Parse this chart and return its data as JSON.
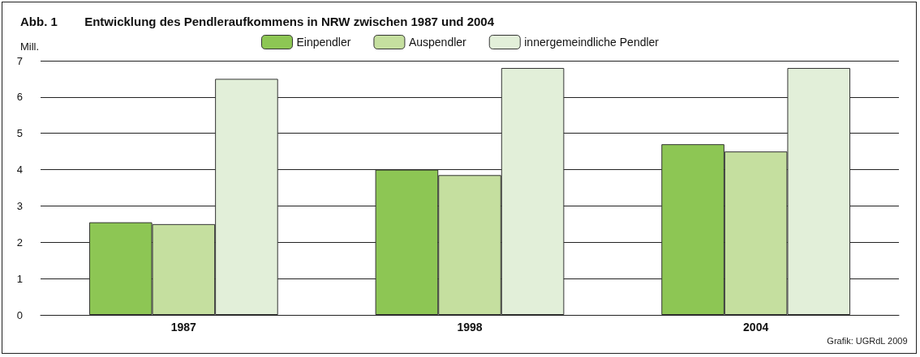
{
  "chart_data": {
    "type": "bar",
    "title": "Abb. 1        Entwicklung des Pendleraufkommens in NRW zwischen 1987 und 2004",
    "ylabel": "Mill.",
    "categories": [
      "1987",
      "1998",
      "2004"
    ],
    "series": [
      {
        "name": "Einpendler",
        "color": "#8dc654",
        "values": [
          2.55,
          4.0,
          4.7
        ]
      },
      {
        "name": "Auspendler",
        "color": "#c5df9f",
        "values": [
          2.5,
          3.85,
          4.5
        ]
      },
      {
        "name": "innergemeindliche Pendler",
        "color": "#e2efd9",
        "values": [
          6.5,
          6.8,
          6.8
        ]
      }
    ],
    "ylim": [
      0,
      7
    ],
    "yticks": [
      0,
      1,
      2,
      3,
      4,
      5,
      6,
      7
    ],
    "grid": "y",
    "legend": "top",
    "annotations": [
      "Grafik: UGRdL 2009"
    ]
  }
}
